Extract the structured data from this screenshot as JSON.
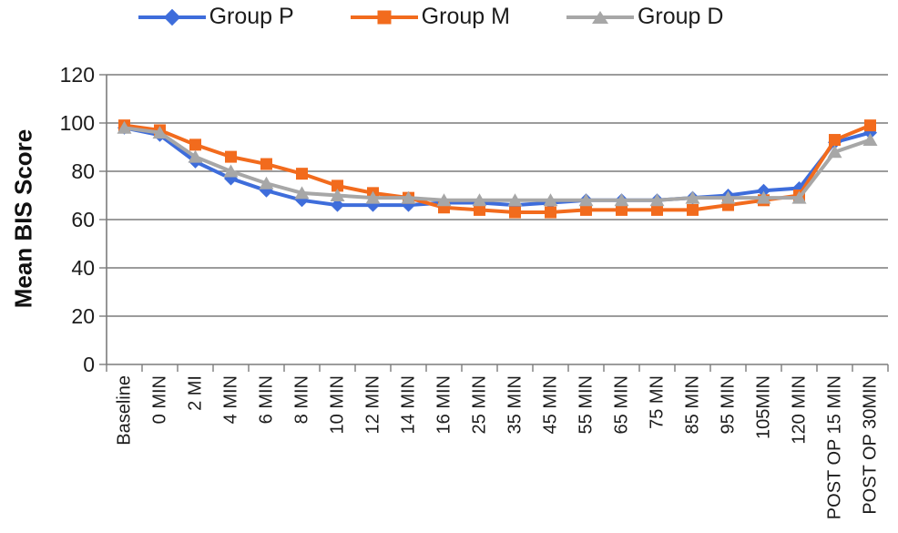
{
  "chart_data": {
    "type": "line",
    "title": "",
    "xlabel": "",
    "ylabel": "Mean BIS Score",
    "ylim": [
      0,
      120
    ],
    "yticks": [
      0,
      20,
      40,
      60,
      80,
      100,
      120
    ],
    "grid": true,
    "legend_position": "top",
    "categories": [
      "Baseline",
      "0 MIN",
      "2 MI",
      "4 MIN",
      "6 MIN",
      "8 MIN",
      "10 MIN",
      "12 MIN",
      "14 MIN",
      "16 MIN",
      "25 MIN",
      "35 MIN",
      "45 MIN",
      "55 MIN",
      "65 MIN",
      "75 MN",
      "85 MIN",
      "95 MIN",
      "105MIN",
      "120 MIN",
      "POST OP 15 MIN",
      "POST OP 30MIN"
    ],
    "series": [
      {
        "name": "Group P",
        "marker": "diamond",
        "color": "#3E6DDB",
        "values": [
          98,
          95,
          84,
          77,
          72,
          68,
          66,
          66,
          66,
          67,
          67,
          66,
          67,
          68,
          68,
          68,
          69,
          70,
          72,
          73,
          92,
          96
        ]
      },
      {
        "name": "Group M",
        "marker": "square",
        "color": "#F26B1D",
        "values": [
          99,
          97,
          91,
          86,
          83,
          79,
          74,
          71,
          69,
          65,
          64,
          63,
          63,
          64,
          64,
          64,
          64,
          66,
          68,
          70,
          93,
          99
        ]
      },
      {
        "name": "Group D",
        "marker": "triangle",
        "color": "#A7A7A7",
        "values": [
          98,
          96,
          86,
          80,
          75,
          71,
          70,
          69,
          69,
          68,
          68,
          68,
          68,
          68,
          68,
          68,
          69,
          69,
          69,
          69,
          88,
          93
        ]
      }
    ],
    "colors": {
      "grid": "#7C7C7C",
      "axis": "#7C7C7C",
      "text": "#1C1C1C"
    }
  }
}
